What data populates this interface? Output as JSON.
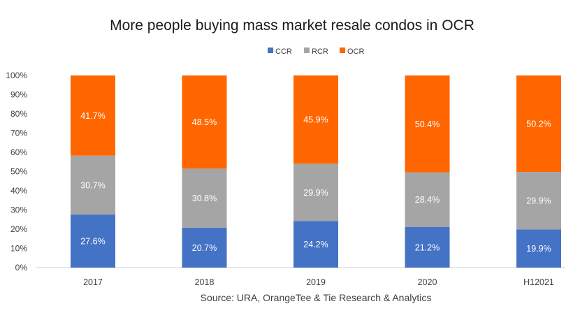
{
  "chart_data": {
    "type": "bar",
    "stacked": true,
    "title": "More people buying mass market resale condos in OCR",
    "xlabel": "",
    "ylabel": "",
    "source": "Source: URA, OrangeTee & Tie Research & Analytics",
    "categories": [
      "2017",
      "2018",
      "2019",
      "2020",
      "H12021"
    ],
    "series": [
      {
        "name": "CCR",
        "color": "#4472c4",
        "values": [
          27.6,
          20.7,
          24.2,
          21.2,
          19.9
        ]
      },
      {
        "name": "RCR",
        "color": "#a5a5a5",
        "values": [
          30.7,
          30.8,
          29.9,
          28.4,
          29.9
        ]
      },
      {
        "name": "OCR",
        "color": "#ff6600",
        "values": [
          41.7,
          48.5,
          45.9,
          50.4,
          50.2
        ]
      }
    ],
    "data_labels": [
      [
        "27.6%",
        "20.7%",
        "24.2%",
        "21.2%",
        "19.9%"
      ],
      [
        "30.7%",
        "30.8%",
        "29.9%",
        "28.4%",
        "29.9%"
      ],
      [
        "41.7%",
        "48.5%",
        "45.9%",
        "50.4%",
        "50.2%"
      ]
    ],
    "ylim": [
      0,
      100
    ],
    "yticks": [
      "0%",
      "10%",
      "20%",
      "30%",
      "40%",
      "50%",
      "60%",
      "70%",
      "80%",
      "90%",
      "100%"
    ],
    "grid": false,
    "legend_position": "top-center"
  }
}
